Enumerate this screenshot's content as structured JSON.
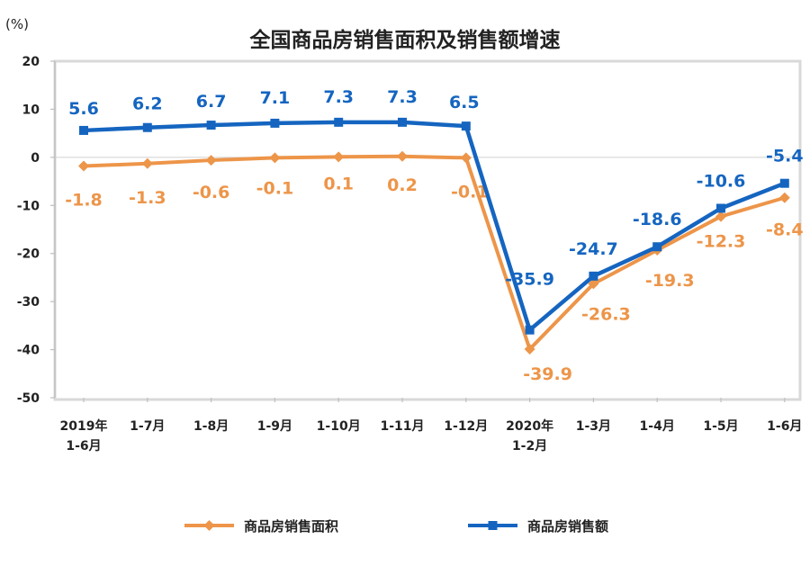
{
  "chart_data": {
    "type": "line",
    "title": "全国商品房销售面积及销售额增速",
    "unit_label": "(%)",
    "ylim": [
      -50,
      20
    ],
    "yticks": [
      20,
      10,
      0,
      -10,
      -20,
      -30,
      -40,
      -50
    ],
    "categories": [
      [
        "2019年",
        "1-6月"
      ],
      [
        "1-7月"
      ],
      [
        "1-8月"
      ],
      [
        "1-9月"
      ],
      [
        "1-10月"
      ],
      [
        "1-11月"
      ],
      [
        "1-12月"
      ],
      [
        "2020年",
        "1-2月"
      ],
      [
        "1-3月"
      ],
      [
        "1-4月"
      ],
      [
        "1-5月"
      ],
      [
        "1-6月"
      ]
    ],
    "series": [
      {
        "name": "商品房销售面积",
        "color": "#ED9549",
        "marker": "diamond",
        "values": [
          -1.8,
          -1.3,
          -0.6,
          -0.1,
          0.1,
          0.2,
          -0.1,
          -39.9,
          -26.3,
          -19.3,
          -12.3,
          -8.4
        ],
        "labels": [
          "-1.8",
          "-1.3",
          "-0.6",
          "-0.1",
          "0.1",
          "0.2",
          "-0.1",
          "-39.9",
          "-26.3",
          "-19.3",
          "-12.3",
          "-8.4"
        ]
      },
      {
        "name": "商品房销售额",
        "color": "#1565C0",
        "marker": "square",
        "values": [
          5.6,
          6.2,
          6.7,
          7.1,
          7.3,
          7.3,
          6.5,
          -35.9,
          -24.7,
          -18.6,
          -10.6,
          -5.4
        ],
        "labels": [
          "5.6",
          "6.2",
          "6.7",
          "7.1",
          "7.3",
          "7.3",
          "6.5",
          "-35.9",
          "-24.7",
          "-18.6",
          "-10.6",
          "-5.4"
        ]
      }
    ],
    "legend": "bottom"
  }
}
